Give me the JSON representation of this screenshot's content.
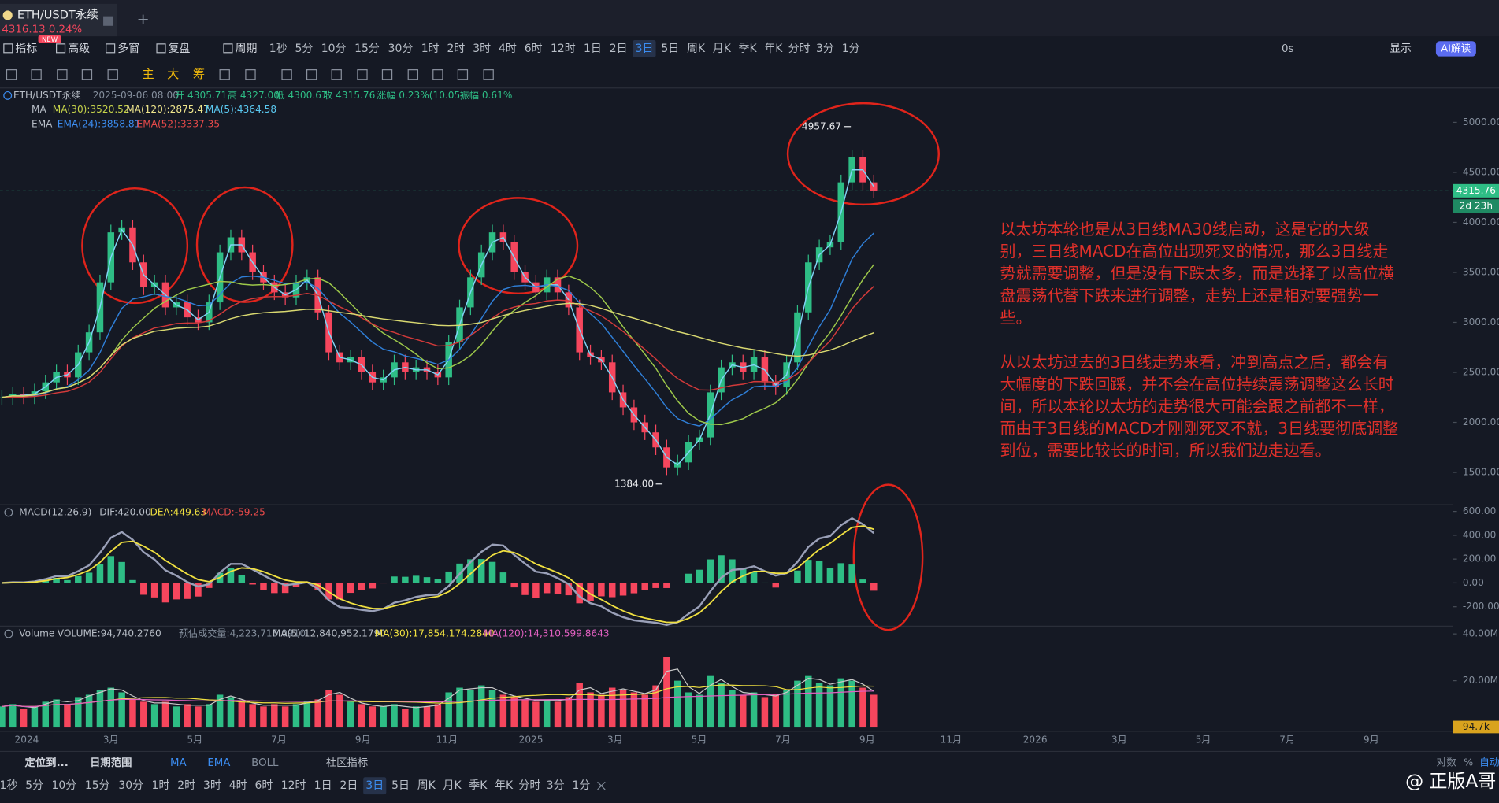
{
  "tab": {
    "title": "ETH/USDT永续",
    "price": "4316.13 0.24%",
    "badge": "NEW"
  },
  "toolbar": {
    "tools": [
      "指标",
      "高级",
      "多窗",
      "复盘",
      "周期"
    ],
    "periods": [
      "1秒",
      "5分",
      "10分",
      "15分",
      "30分",
      "1时",
      "2时",
      "3时",
      "4时",
      "6时",
      "12时",
      "1日",
      "2日",
      "3日",
      "5日",
      "周K",
      "月K",
      "季K",
      "年K",
      "分时",
      "3分",
      "1分"
    ],
    "active": "3日",
    "right": [
      "0s",
      "显示",
      "AI解读"
    ],
    "drawing": [
      "主",
      "大",
      "筹"
    ]
  },
  "legend": {
    "main": [
      "ETH/USDT永续",
      "2025-09-06 08:00",
      "开 4305.71",
      "高 4327.00",
      "低 4300.67",
      "收 4315.76",
      "涨幅 0.23%(10.05)",
      "振幅 0.61%"
    ],
    "ma": [
      "MA",
      "MA(30):3520.52",
      "MA(120):2875.47",
      "MA(5):4364.58"
    ],
    "ema": [
      "EMA",
      "EMA(24):3858.81",
      "EMA(52):3337.35"
    ]
  },
  "price_chart": {
    "type": "candlestick",
    "closes": [
      2250,
      2280,
      2260,
      2310,
      2400,
      2500,
      2450,
      2700,
      2900,
      3400,
      3900,
      3950,
      3600,
      3350,
      3400,
      3150,
      3200,
      3050,
      3000,
      3200,
      3700,
      3850,
      3700,
      3500,
      3400,
      3300,
      3250,
      3400,
      3450,
      3100,
      2700,
      2600,
      2650,
      2500,
      2400,
      2450,
      2600,
      2500,
      2550,
      2500,
      2450,
      2800,
      3150,
      3450,
      3700,
      3900,
      3800,
      3500,
      3400,
      3300,
      3450,
      3300,
      3150,
      2700,
      2650,
      2600,
      2300,
      2150,
      2000,
      1900,
      1750,
      1550,
      1600,
      1800,
      1850,
      2300,
      2550,
      2600,
      2500,
      2650,
      2400,
      2350,
      2600,
      3100,
      3600,
      3750,
      3800,
      4400,
      4650,
      4400,
      4316
    ],
    "ylim": [
      1205,
      5344
    ],
    "yticks": [
      {
        "value": 1500,
        "label": "1500.00"
      },
      {
        "value": 2000,
        "label": "2000.00"
      },
      {
        "value": 2500,
        "label": "2500.00"
      },
      {
        "value": 3000,
        "label": "3000.00"
      },
      {
        "value": 3500,
        "label": "3500.00"
      },
      {
        "value": 4000,
        "label": "4000.00"
      },
      {
        "value": 4500,
        "label": "4500.00"
      },
      {
        "value": 5000,
        "label": "5000.00"
      }
    ],
    "high": {
      "value": 4957.67,
      "label": "4957.67"
    },
    "low": {
      "value": 1384,
      "label": "1384.00"
    },
    "current_price": {
      "value": 4315.76,
      "label": "4315.76"
    },
    "countdown": "2d 23h"
  },
  "macd": {
    "header": [
      "MACD(12,26,9)",
      "DIF:420.00",
      "DEA:449.63",
      "MACD:-59.25"
    ],
    "ylim": [
      -363,
      656
    ],
    "yticks": [
      {
        "value": -200,
        "label": "-200.00"
      },
      {
        "value": 0,
        "label": "0.00"
      },
      {
        "value": 200,
        "label": "200.00"
      },
      {
        "value": 400,
        "label": "400.00"
      },
      {
        "value": 600,
        "label": "600.00"
      }
    ]
  },
  "volume": {
    "header": [
      "Volume",
      "VOLUME:94,740.2760",
      "预估成交量:4,223,715.0910",
      "MA(5):12,840,952.1790",
      "MA(30):17,854,174.2840",
      "MA(120):14,310,599.8643"
    ],
    "values": [
      9,
      10,
      8,
      9,
      11,
      12,
      10,
      13,
      14,
      16,
      17,
      15,
      12,
      11,
      10,
      11,
      9,
      10,
      9,
      10,
      14,
      13,
      11,
      10,
      9,
      10,
      9,
      10,
      11,
      12,
      16,
      14,
      11,
      10,
      9,
      9,
      10,
      8,
      9,
      9,
      10,
      15,
      17,
      16,
      18,
      16,
      14,
      13,
      12,
      11,
      12,
      11,
      13,
      19,
      15,
      14,
      17,
      16,
      15,
      14,
      18,
      30,
      20,
      15,
      14,
      22,
      19,
      16,
      14,
      15,
      13,
      14,
      16,
      20,
      22,
      19,
      18,
      21,
      20,
      17,
      14
    ],
    "ylim": [
      0,
      43.3
    ],
    "yticks": [
      {
        "value": 20,
        "label": "20.00M"
      },
      {
        "value": 40,
        "label": "40.00M"
      }
    ],
    "current": "94.7k"
  },
  "xaxis": [
    "2024",
    "3月",
    "5月",
    "7月",
    "9月",
    "11月",
    "2025",
    "3月",
    "5月",
    "7月",
    "9月",
    "11月",
    "2026",
    "3月",
    "5月",
    "7月",
    "9月"
  ],
  "annotation": [
    [
      "以太坊本轮也是从3日线MA30线启动，这是它的大级",
      "别，三日线MACD在高位出现死叉的情况，那么3日线走",
      "势就需要调整，但是没有下跌太多，而是选择了以高位横",
      "盘震荡代替下跌来进行调整，走势上还是相对要强势一",
      "些。"
    ],
    [
      "从以太坊过去的3日线走势来看，冲到高点之后，都会有",
      "大幅度的下跌回踩，并不会在高位持续震荡调整这么长时",
      "间，所以本轮以太坊的走势很大可能会跟之前都不一样，",
      "而由于3日线的MACD才刚刚死叉不就，3日线要彻底调整",
      "到位，需要比较长的时间，所以我们边走边看。"
    ]
  ],
  "bottom": {
    "tools": [
      "定位到...",
      "日期范围",
      "MA",
      "EMA",
      "BOLL",
      "社区指标"
    ],
    "right": [
      "对数",
      "%",
      "自动"
    ]
  },
  "watermark": "@ 正版A哥"
}
